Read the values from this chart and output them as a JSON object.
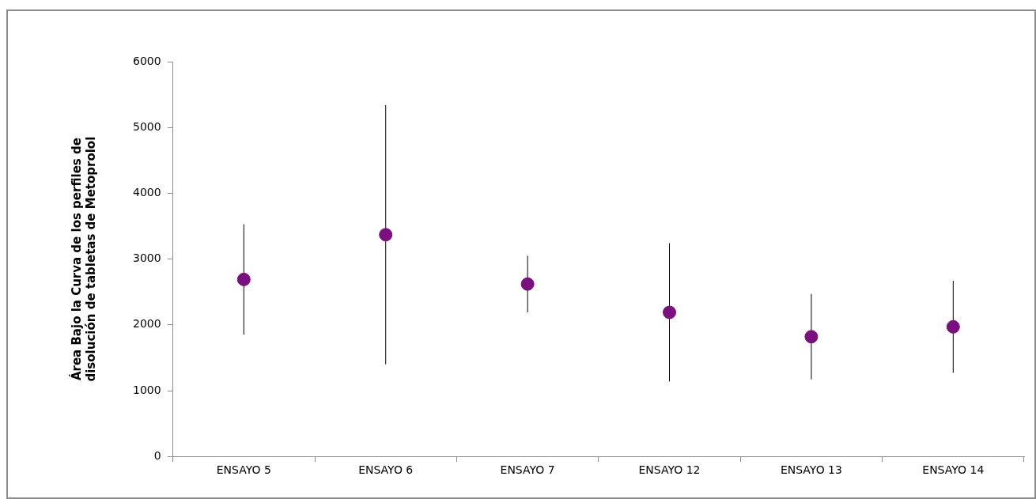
{
  "chart_data": {
    "type": "scatter",
    "ylabel": "Área Bajo la Curva de los perfiles de\ndisolución de tabletas de Metoprolol",
    "categories": [
      "ENSAYO 5",
      "ENSAYO 6",
      "ENSAYO 7",
      "ENSAYO 12",
      "ENSAYO 13",
      "ENSAYO 14"
    ],
    "series": [
      {
        "color": "#7b0f80",
        "values": [
          2690,
          3370,
          2620,
          2190,
          1820,
          1970
        ],
        "errors": [
          840,
          1970,
          430,
          1050,
          650,
          700
        ]
      }
    ],
    "ylim": [
      0,
      6000
    ],
    "yticks": [
      0,
      1000,
      2000,
      3000,
      4000,
      5000,
      6000
    ],
    "grid": false,
    "legend": false,
    "marker": "circle"
  }
}
